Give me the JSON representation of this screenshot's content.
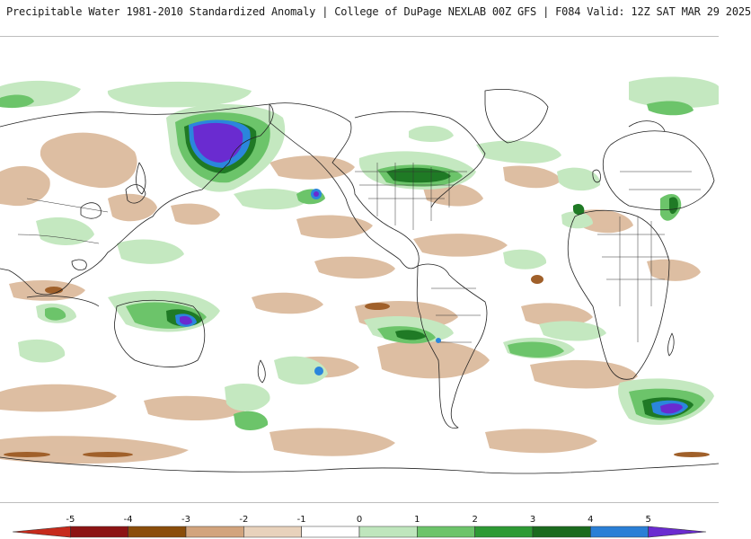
{
  "header": {
    "title": "Precipitable Water 1981-2010 Standardized Anomaly | College of DuPage NEXLAB  00Z GFS | F084 Valid: 12Z SAT MAR 29 2025"
  },
  "map": {
    "projection": "equirectangular",
    "center_longitude": "180",
    "variable": "Precipitable Water Standardized Anomaly"
  },
  "legend": {
    "ticks": [
      "-5",
      "-4",
      "-3",
      "-2",
      "-1",
      "0",
      "1",
      "2",
      "3",
      "4",
      "5"
    ],
    "colors": [
      "#c62a1c",
      "#8c1414",
      "#8a4d0a",
      "#d2a47d",
      "#e8d2bc",
      "#ffffff",
      "#bfe6bd",
      "#6cc46a",
      "#2d9a34",
      "#1a6b1e",
      "#2a7fd6",
      "#6a2bd0"
    ]
  }
}
